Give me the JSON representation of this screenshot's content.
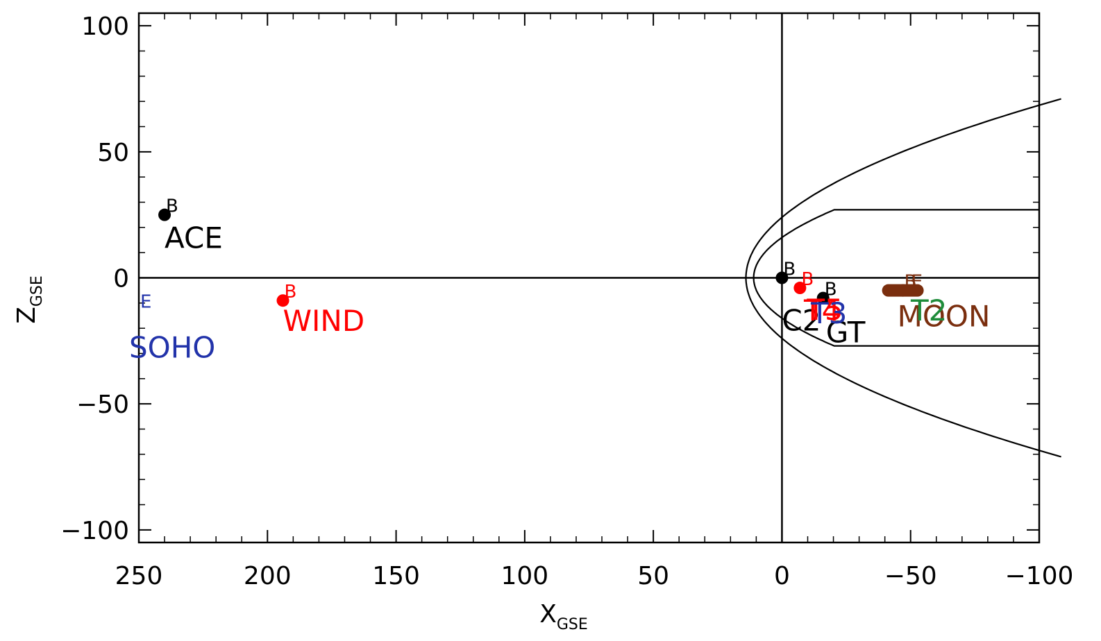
{
  "chart_data": {
    "type": "scatter",
    "xlabel": "X",
    "xlabel_sub": "GSE",
    "ylabel": "Z",
    "ylabel_sub": "GSE",
    "xlim": [
      250,
      -100
    ],
    "ylim": [
      -105,
      105
    ],
    "xticks": [
      250,
      200,
      150,
      100,
      50,
      0,
      -50,
      -100
    ],
    "yticks": [
      100,
      50,
      0,
      -50,
      -100
    ],
    "reference_lines": {
      "x": 0,
      "z": 0
    },
    "boundaries": [
      {
        "name": "bow-shock",
        "kind": "parabola",
        "nose_x": 14,
        "y_at_x0": 24,
        "far_x": -100,
        "far_y": 71
      },
      {
        "name": "magnetopause",
        "kind": "flaring",
        "nose_x": 11,
        "y_at_x0": 16,
        "tail_radius": 27,
        "far_x": -100
      }
    ],
    "series": [
      {
        "name": "ACE",
        "color": "#000000",
        "x": 240,
        "z": 25,
        "marks": [
          "B"
        ]
      },
      {
        "name": "WIND",
        "color": "#ff0000",
        "x": 194,
        "z": -9,
        "marks": [
          "B"
        ]
      },
      {
        "name": "SOHO",
        "color": "#2233aa",
        "x": 250,
        "z": -13,
        "marks": [
          "E"
        ]
      },
      {
        "name": "C2",
        "color": "#000000",
        "x": 0,
        "z": 0,
        "marks": [
          "B"
        ]
      },
      {
        "name": "GT",
        "color": "#000000",
        "x": -16,
        "z": -8,
        "marks": [
          "B"
        ]
      },
      {
        "name": "T5",
        "color": "#ff0000",
        "x": -7,
        "z": -4,
        "marks": [
          "B"
        ]
      },
      {
        "name": "MOON",
        "color": "#7a2e0e",
        "x": -47,
        "z": -5,
        "marks": [
          "B",
          "E"
        ]
      }
    ],
    "extra_labels": [
      {
        "text": "T4",
        "color": "#ff0000"
      },
      {
        "text": "T3",
        "color": "#2233aa"
      },
      {
        "text": "T2",
        "color": "#1e8c3a"
      }
    ]
  }
}
